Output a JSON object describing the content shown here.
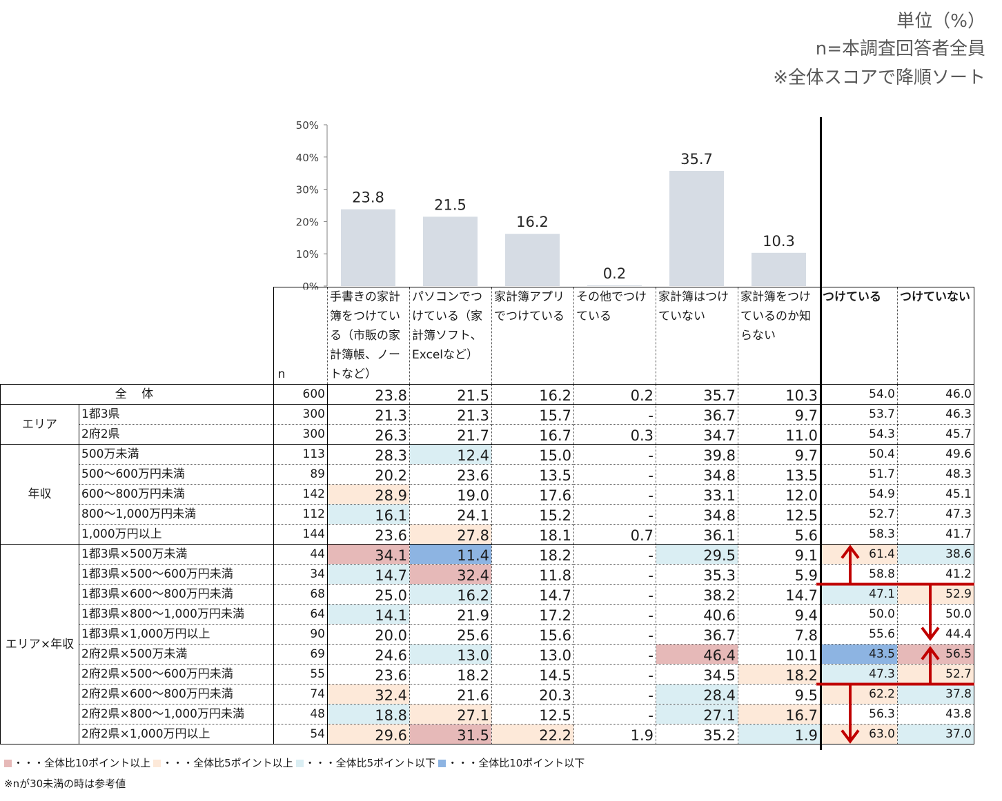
{
  "notes": {
    "unit": "単位（%）",
    "base": "n=本調査回答者全員",
    "sort": "※全体スコアで降順ソート"
  },
  "chart_data": {
    "type": "bar",
    "ylim": [
      0,
      50
    ],
    "yticks": [
      "0%",
      "10%",
      "20%",
      "30%",
      "40%",
      "50%"
    ],
    "categories": [
      "手書きの家計簿をつけている（市販の家計簿帳、ノートなど）",
      "パソコンでつけている（家計簿ソフト、Excelなど）",
      "家計簿アプリでつけている",
      "その他でつけている",
      "家計簿はつけていない",
      "家計簿をつけているのか知らない"
    ],
    "values": [
      23.8,
      21.5,
      16.2,
      0.2,
      35.7,
      10.3
    ],
    "data_labels": [
      "23.8",
      "21.5",
      "16.2",
      "0.2",
      "35.7",
      "10.3"
    ],
    "bar_color": "#d6dce4"
  },
  "table": {
    "n_header": "n",
    "summary_headers": [
      "つけている",
      "つけていない"
    ],
    "total_label": "全 体",
    "groups": [
      {
        "label": "エリア",
        "span": 2
      },
      {
        "label": "年収",
        "span": 5
      },
      {
        "label": "エリア×年収",
        "span": 10
      }
    ],
    "rows": [
      {
        "label": "全 体",
        "n": "600",
        "v": [
          "23.8",
          "21.5",
          "16.2",
          "0.2",
          "35.7",
          "10.3"
        ],
        "s": [
          "54.0",
          "46.0"
        ],
        "vc": [
          "",
          "",
          "",
          "",
          "",
          ""
        ],
        "sc": [
          "",
          ""
        ]
      },
      {
        "label": "1都3県",
        "n": "300",
        "v": [
          "21.3",
          "21.3",
          "15.7",
          "-",
          "36.7",
          "9.7"
        ],
        "s": [
          "53.7",
          "46.3"
        ],
        "vc": [
          "",
          "",
          "",
          "",
          "",
          ""
        ],
        "sc": [
          "",
          ""
        ]
      },
      {
        "label": "2府2県",
        "n": "300",
        "v": [
          "26.3",
          "21.7",
          "16.7",
          "0.3",
          "34.7",
          "11.0"
        ],
        "s": [
          "54.3",
          "45.7"
        ],
        "vc": [
          "",
          "",
          "",
          "",
          "",
          ""
        ],
        "sc": [
          "",
          ""
        ]
      },
      {
        "label": "500万未満",
        "n": "113",
        "v": [
          "28.3",
          "12.4",
          "15.0",
          "-",
          "39.8",
          "9.7"
        ],
        "s": [
          "50.4",
          "49.6"
        ],
        "vc": [
          "",
          "lb",
          "",
          "",
          "",
          ""
        ],
        "sc": [
          "",
          ""
        ]
      },
      {
        "label": "500～600万円未満",
        "n": "89",
        "v": [
          "20.2",
          "23.6",
          "13.5",
          "-",
          "34.8",
          "13.5"
        ],
        "s": [
          "51.7",
          "48.3"
        ],
        "vc": [
          "",
          "",
          "",
          "",
          "",
          ""
        ],
        "sc": [
          "",
          ""
        ]
      },
      {
        "label": "600～800万円未満",
        "n": "142",
        "v": [
          "28.9",
          "19.0",
          "17.6",
          "-",
          "33.1",
          "12.0"
        ],
        "s": [
          "54.9",
          "45.1"
        ],
        "vc": [
          "lo",
          "",
          "",
          "",
          "",
          ""
        ],
        "sc": [
          "",
          ""
        ]
      },
      {
        "label": "800～1,000万円未満",
        "n": "112",
        "v": [
          "16.1",
          "24.1",
          "15.2",
          "-",
          "34.8",
          "12.5"
        ],
        "s": [
          "52.7",
          "47.3"
        ],
        "vc": [
          "lb",
          "",
          "",
          "",
          "",
          ""
        ],
        "sc": [
          "",
          ""
        ]
      },
      {
        "label": "1,000万円以上",
        "n": "144",
        "v": [
          "23.6",
          "27.8",
          "18.1",
          "0.7",
          "36.1",
          "5.6"
        ],
        "s": [
          "58.3",
          "41.7"
        ],
        "vc": [
          "",
          "lo",
          "",
          "",
          "",
          ""
        ],
        "sc": [
          "",
          ""
        ]
      },
      {
        "label": "1都3県×500万未満",
        "n": "44",
        "v": [
          "34.1",
          "11.4",
          "18.2",
          "-",
          "29.5",
          "9.1"
        ],
        "s": [
          "61.4",
          "38.6"
        ],
        "vc": [
          "r",
          "b",
          "",
          "",
          "lb",
          ""
        ],
        "sc": [
          "lo",
          "lb"
        ]
      },
      {
        "label": "1都3県×500～600万円未満",
        "n": "34",
        "v": [
          "14.7",
          "32.4",
          "11.8",
          "-",
          "35.3",
          "5.9"
        ],
        "s": [
          "58.8",
          "41.2"
        ],
        "vc": [
          "lb",
          "r",
          "",
          "",
          "",
          ""
        ],
        "sc": [
          "",
          ""
        ]
      },
      {
        "label": "1都3県×600～800万円未満",
        "n": "68",
        "v": [
          "25.0",
          "16.2",
          "14.7",
          "-",
          "38.2",
          "14.7"
        ],
        "s": [
          "47.1",
          "52.9"
        ],
        "vc": [
          "",
          "lb",
          "",
          "",
          "",
          ""
        ],
        "sc": [
          "lb",
          "lo"
        ]
      },
      {
        "label": "1都3県×800～1,000万円未満",
        "n": "64",
        "v": [
          "14.1",
          "21.9",
          "17.2",
          "-",
          "40.6",
          "9.4"
        ],
        "s": [
          "50.0",
          "50.0"
        ],
        "vc": [
          "lb",
          "",
          "",
          "",
          "",
          ""
        ],
        "sc": [
          "",
          ""
        ]
      },
      {
        "label": "1都3県×1,000万円以上",
        "n": "90",
        "v": [
          "20.0",
          "25.6",
          "15.6",
          "-",
          "36.7",
          "7.8"
        ],
        "s": [
          "55.6",
          "44.4"
        ],
        "vc": [
          "",
          "",
          "",
          "",
          "",
          ""
        ],
        "sc": [
          "",
          ""
        ]
      },
      {
        "label": "2府2県×500万未満",
        "n": "69",
        "v": [
          "24.6",
          "13.0",
          "13.0",
          "-",
          "46.4",
          "10.1"
        ],
        "s": [
          "43.5",
          "56.5"
        ],
        "vc": [
          "",
          "lb",
          "",
          "",
          "r",
          ""
        ],
        "sc": [
          "b",
          "r"
        ]
      },
      {
        "label": "2府2県×500～600万円未満",
        "n": "55",
        "v": [
          "23.6",
          "18.2",
          "14.5",
          "-",
          "34.5",
          "18.2"
        ],
        "s": [
          "47.3",
          "52.7"
        ],
        "vc": [
          "",
          "",
          "",
          "",
          "",
          "lo"
        ],
        "sc": [
          "lb",
          "lo"
        ]
      },
      {
        "label": "2府2県×600～800万円未満",
        "n": "74",
        "v": [
          "32.4",
          "21.6",
          "20.3",
          "-",
          "28.4",
          "9.5"
        ],
        "s": [
          "62.2",
          "37.8"
        ],
        "vc": [
          "lo",
          "",
          "",
          "",
          "lb",
          ""
        ],
        "sc": [
          "lo",
          "lb"
        ]
      },
      {
        "label": "2府2県×800～1,000万円未満",
        "n": "48",
        "v": [
          "18.8",
          "27.1",
          "12.5",
          "-",
          "27.1",
          "16.7"
        ],
        "s": [
          "56.3",
          "43.8"
        ],
        "vc": [
          "lb",
          "lo",
          "",
          "",
          "lb",
          "lo"
        ],
        "sc": [
          "",
          ""
        ]
      },
      {
        "label": "2府2県×1,000万円以上",
        "n": "54",
        "v": [
          "29.6",
          "31.5",
          "22.2",
          "1.9",
          "35.2",
          "1.9"
        ],
        "s": [
          "63.0",
          "37.0"
        ],
        "vc": [
          "lo",
          "r",
          "lo",
          "",
          "",
          "lb"
        ],
        "sc": [
          "lo",
          "lb"
        ]
      }
    ]
  },
  "highlight_colors": {
    "r": "#e6b9b8",
    "lo": "#fde9d9",
    "lb": "#daeef3",
    "b": "#8db4e2"
  },
  "arrow_color": "#c00000",
  "legend": [
    {
      "color_key": "r",
      "text": "・・・全体比10ポイント以上"
    },
    {
      "color_key": "lo",
      "text": "・・・全体比5ポイント以上"
    },
    {
      "color_key": "lb",
      "text": "・・・全体比5ポイント以下"
    },
    {
      "color_key": "b",
      "text": "・・・全体比10ポイント以下"
    }
  ],
  "footnote": "※nが30未満の時は参考値"
}
